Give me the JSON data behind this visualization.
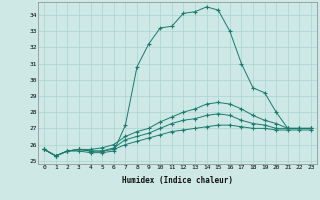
{
  "xlabel": "Humidex (Indice chaleur)",
  "bg_color": "#cde8e5",
  "grid_color": "#a8d5d0",
  "line_color": "#1a7a6e",
  "xlim": [
    -0.5,
    23.5
  ],
  "ylim": [
    24.8,
    34.8
  ],
  "yticks": [
    25,
    26,
    27,
    28,
    29,
    30,
    31,
    32,
    33,
    34
  ],
  "xticks": [
    0,
    1,
    2,
    3,
    4,
    5,
    6,
    7,
    8,
    9,
    10,
    11,
    12,
    13,
    14,
    15,
    16,
    17,
    18,
    19,
    20,
    21,
    22,
    23
  ],
  "series": [
    [
      0,
      25.7,
      1,
      25.3,
      2,
      25.6,
      3,
      25.6,
      4,
      25.5,
      5,
      25.5,
      6,
      25.6,
      7,
      27.2,
      8,
      30.8,
      9,
      32.2,
      10,
      33.2,
      11,
      33.3,
      12,
      34.1,
      13,
      34.2,
      14,
      34.5,
      15,
      34.3,
      16,
      33.0,
      17,
      31.0,
      18,
      29.5,
      19,
      29.2,
      20,
      28.0,
      21,
      27.0,
      22,
      27.0,
      23,
      27.0
    ],
    [
      0,
      25.7,
      1,
      25.3,
      2,
      25.6,
      3,
      25.7,
      4,
      25.7,
      5,
      25.8,
      6,
      26.0,
      7,
      26.5,
      8,
      26.8,
      9,
      27.0,
      10,
      27.4,
      11,
      27.7,
      12,
      28.0,
      13,
      28.2,
      14,
      28.5,
      15,
      28.6,
      16,
      28.5,
      17,
      28.2,
      18,
      27.8,
      19,
      27.5,
      20,
      27.3,
      21,
      27.0,
      22,
      27.0,
      23,
      27.0
    ],
    [
      0,
      25.7,
      1,
      25.3,
      2,
      25.6,
      3,
      25.7,
      4,
      25.6,
      5,
      25.6,
      6,
      25.8,
      7,
      26.3,
      8,
      26.5,
      9,
      26.7,
      10,
      27.0,
      11,
      27.3,
      12,
      27.5,
      13,
      27.6,
      14,
      27.8,
      15,
      27.9,
      16,
      27.8,
      17,
      27.5,
      18,
      27.3,
      19,
      27.2,
      20,
      27.0,
      21,
      27.0,
      22,
      27.0,
      23,
      27.0
    ],
    [
      0,
      25.7,
      1,
      25.3,
      2,
      25.6,
      3,
      25.7,
      4,
      25.6,
      5,
      25.6,
      6,
      25.7,
      7,
      26.0,
      8,
      26.2,
      9,
      26.4,
      10,
      26.6,
      11,
      26.8,
      12,
      26.9,
      13,
      27.0,
      14,
      27.1,
      15,
      27.2,
      16,
      27.2,
      17,
      27.1,
      18,
      27.0,
      19,
      27.0,
      20,
      26.9,
      21,
      26.9,
      22,
      26.9,
      23,
      26.9
    ]
  ]
}
